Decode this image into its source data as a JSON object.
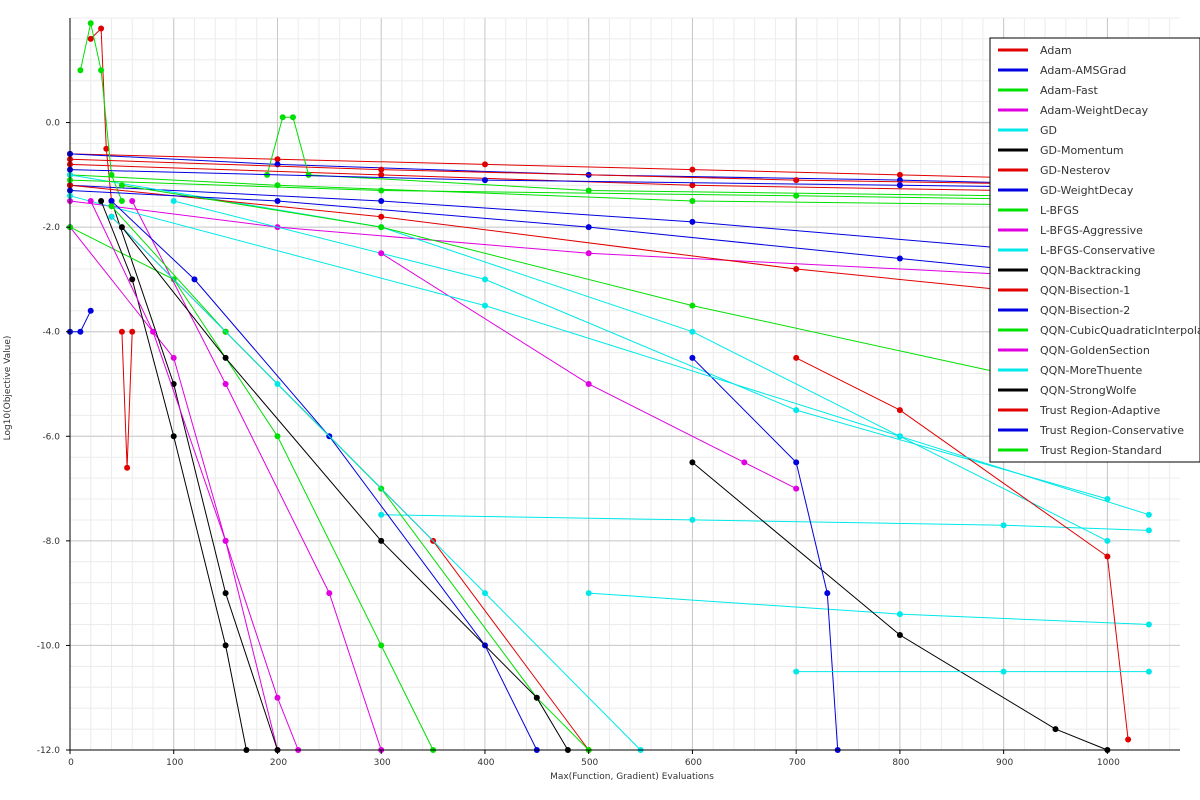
{
  "chart_data": {
    "type": "line",
    "title": "",
    "xlabel": "Max(Function, Gradient) Evaluations",
    "ylabel": "Log10(Objective Value)",
    "xlim": [
      0,
      1070
    ],
    "ylim": [
      -12.0,
      2.0
    ],
    "x_ticks": [
      0,
      100,
      200,
      300,
      400,
      500,
      600,
      700,
      800,
      900,
      1000
    ],
    "y_ticks": [
      0.0,
      -2.0,
      -4.0,
      -6.0,
      -8.0,
      -10.0,
      -12.0
    ],
    "y_tick_labels": [
      "0.0",
      "-2.0",
      "-4.0",
      "-6.0",
      "-8.0",
      "-10.0",
      "-12.0"
    ],
    "grid": true,
    "legend_position": "top-right",
    "series": [
      {
        "name": "Adam",
        "color": "#e00000",
        "lines": [
          [
            [
              0,
              -0.6
            ],
            [
              200,
              -0.7
            ],
            [
              400,
              -0.8
            ],
            [
              600,
              -0.9
            ],
            [
              800,
              -1.0
            ],
            [
              1000,
              -1.1
            ]
          ],
          [
            [
              0,
              -0.8
            ],
            [
              300,
              -1.0
            ],
            [
              600,
              -1.2
            ],
            [
              900,
              -1.3
            ],
            [
              1070,
              -1.3
            ]
          ],
          [
            [
              20,
              1.6
            ],
            [
              30,
              1.8
            ],
            [
              35,
              -0.5
            ],
            [
              40,
              -1.5
            ]
          ]
        ]
      },
      {
        "name": "Adam-AMSGrad",
        "color": "#0000e0",
        "lines": [
          [
            [
              0,
              -0.6
            ],
            [
              200,
              -0.8
            ],
            [
              500,
              -1.0
            ],
            [
              800,
              -1.1
            ],
            [
              1000,
              -1.2
            ]
          ],
          [
            [
              0,
              -1.2
            ],
            [
              300,
              -1.5
            ],
            [
              600,
              -1.9
            ],
            [
              900,
              -2.4
            ],
            [
              1000,
              -2.5
            ]
          ],
          [
            [
              0,
              -4.0
            ],
            [
              10,
              -4.0
            ],
            [
              20,
              -3.6
            ]
          ]
        ]
      },
      {
        "name": "Adam-Fast",
        "color": "#00e000",
        "lines": [
          [
            [
              10,
              1.0
            ],
            [
              20,
              1.9
            ],
            [
              30,
              1.0
            ],
            [
              40,
              -1.0
            ],
            [
              50,
              -1.5
            ]
          ],
          [
            [
              190,
              -1.0
            ],
            [
              205,
              0.1
            ],
            [
              215,
              0.1
            ],
            [
              230,
              -1.0
            ],
            [
              500,
              -1.3
            ],
            [
              900,
              -1.4
            ]
          ],
          [
            [
              0,
              -1.0
            ],
            [
              200,
              -1.2
            ],
            [
              600,
              -1.5
            ],
            [
              1050,
              -1.6
            ]
          ]
        ]
      },
      {
        "name": "Adam-WeightDecay",
        "color": "#e000e0",
        "lines": [
          [
            [
              0,
              -1.5
            ],
            [
              200,
              -2.0
            ],
            [
              500,
              -2.5
            ],
            [
              900,
              -2.9
            ]
          ],
          [
            [
              0,
              -2.0
            ],
            [
              100,
              -4.5
            ],
            [
              150,
              -8.0
            ],
            [
              200,
              -12.0
            ]
          ]
        ]
      },
      {
        "name": "GD",
        "color": "#00e8e8",
        "lines": [
          [
            [
              0,
              -1.0
            ],
            [
              300,
              -2.0
            ],
            [
              600,
              -4.0
            ],
            [
              800,
              -6.0
            ],
            [
              1000,
              -8.0
            ]
          ],
          [
            [
              100,
              -1.5
            ],
            [
              400,
              -3.0
            ],
            [
              700,
              -5.5
            ],
            [
              1000,
              -7.2
            ]
          ],
          [
            [
              300,
              -7.5
            ],
            [
              600,
              -7.6
            ],
            [
              900,
              -7.7
            ],
            [
              1040,
              -7.8
            ]
          ],
          [
            [
              500,
              -9.0
            ],
            [
              800,
              -9.4
            ],
            [
              1040,
              -9.6
            ]
          ]
        ]
      },
      {
        "name": "GD-Momentum",
        "color": "#000000",
        "lines": [
          [
            [
              40,
              -1.5
            ],
            [
              100,
              -5.0
            ],
            [
              150,
              -9.0
            ],
            [
              200,
              -12.0
            ]
          ],
          [
            [
              600,
              -6.5
            ],
            [
              800,
              -9.8
            ],
            [
              950,
              -11.6
            ],
            [
              1000,
              -12.0
            ]
          ]
        ]
      },
      {
        "name": "GD-Nesterov",
        "color": "#e00000",
        "lines": [
          [
            [
              0,
              -1.2
            ],
            [
              300,
              -1.8
            ],
            [
              700,
              -2.8
            ],
            [
              1000,
              -3.4
            ]
          ],
          [
            [
              700,
              -4.5
            ],
            [
              800,
              -5.5
            ],
            [
              1000,
              -8.3
            ],
            [
              1020,
              -11.8
            ]
          ],
          [
            [
              50,
              -4.0
            ],
            [
              55,
              -6.6
            ],
            [
              60,
              -4.0
            ]
          ]
        ]
      },
      {
        "name": "GD-WeightDecay",
        "color": "#0000e0",
        "lines": [
          [
            [
              0,
              -1.3
            ],
            [
              200,
              -1.5
            ],
            [
              500,
              -2.0
            ],
            [
              800,
              -2.6
            ],
            [
              1000,
              -3.0
            ]
          ],
          [
            [
              600,
              -4.5
            ],
            [
              700,
              -6.5
            ],
            [
              730,
              -9.0
            ],
            [
              740,
              -12.0
            ]
          ]
        ]
      },
      {
        "name": "L-BFGS",
        "color": "#00e000",
        "lines": [
          [
            [
              0,
              -2.0
            ],
            [
              100,
              -3.0
            ],
            [
              200,
              -6.0
            ],
            [
              300,
              -10.0
            ],
            [
              350,
              -12.0
            ]
          ],
          [
            [
              50,
              -1.2
            ],
            [
              300,
              -2.0
            ],
            [
              600,
              -3.5
            ],
            [
              900,
              -4.8
            ]
          ]
        ]
      },
      {
        "name": "L-BFGS-Aggressive",
        "color": "#e000e0",
        "lines": [
          [
            [
              60,
              -1.5
            ],
            [
              150,
              -5.0
            ],
            [
              250,
              -9.0
            ],
            [
              300,
              -12.0
            ]
          ],
          [
            [
              300,
              -2.5
            ],
            [
              500,
              -5.0
            ],
            [
              650,
              -6.5
            ],
            [
              700,
              -7.0
            ]
          ]
        ]
      },
      {
        "name": "L-BFGS-Conservative",
        "color": "#00e8e8",
        "lines": [
          [
            [
              0,
              -1.4
            ],
            [
              400,
              -3.5
            ],
            [
              800,
              -6.0
            ],
            [
              1040,
              -7.5
            ]
          ],
          [
            [
              700,
              -10.5
            ],
            [
              900,
              -10.5
            ],
            [
              1040,
              -10.5
            ]
          ]
        ]
      },
      {
        "name": "QQN-Backtracking",
        "color": "#000000",
        "lines": [
          [
            [
              30,
              -1.5
            ],
            [
              60,
              -3.0
            ],
            [
              100,
              -6.0
            ],
            [
              150,
              -10.0
            ],
            [
              170,
              -12.0
            ]
          ]
        ]
      },
      {
        "name": "QQN-Bisection-1",
        "color": "#e00000",
        "lines": [
          [
            [
              40,
              -1.8
            ],
            [
              150,
              -4.0
            ],
            [
              350,
              -8.0
            ],
            [
              500,
              -12.0
            ]
          ]
        ]
      },
      {
        "name": "QQN-Bisection-2",
        "color": "#0000e0",
        "lines": [
          [
            [
              40,
              -1.5
            ],
            [
              120,
              -3.0
            ],
            [
              250,
              -6.0
            ],
            [
              400,
              -10.0
            ],
            [
              450,
              -12.0
            ]
          ]
        ]
      },
      {
        "name": "QQN-CubicQuadraticInterpolation",
        "color": "#00e000",
        "lines": [
          [
            [
              40,
              -1.6
            ],
            [
              150,
              -4.0
            ],
            [
              300,
              -7.0
            ],
            [
              450,
              -11.0
            ],
            [
              500,
              -12.0
            ]
          ]
        ]
      },
      {
        "name": "QQN-GoldenSection",
        "color": "#e000e0",
        "lines": [
          [
            [
              20,
              -1.5
            ],
            [
              80,
              -4.0
            ],
            [
              150,
              -8.0
            ],
            [
              200,
              -11.0
            ],
            [
              220,
              -12.0
            ]
          ]
        ]
      },
      {
        "name": "QQN-MoreThuente",
        "color": "#00e8e8",
        "lines": [
          [
            [
              40,
              -1.8
            ],
            [
              200,
              -5.0
            ],
            [
              400,
              -9.0
            ],
            [
              550,
              -12.0
            ]
          ]
        ]
      },
      {
        "name": "QQN-StrongWolfe",
        "color": "#000000",
        "lines": [
          [
            [
              50,
              -2.0
            ],
            [
              150,
              -4.5
            ],
            [
              300,
              -8.0
            ],
            [
              450,
              -11.0
            ],
            [
              480,
              -12.0
            ]
          ]
        ]
      },
      {
        "name": "Trust Region-Adaptive",
        "color": "#e00000",
        "lines": [
          [
            [
              0,
              -0.7
            ],
            [
              300,
              -0.9
            ],
            [
              700,
              -1.1
            ],
            [
              1000,
              -1.2
            ],
            [
              1070,
              -1.3
            ]
          ]
        ]
      },
      {
        "name": "Trust Region-Conservative",
        "color": "#0000e0",
        "lines": [
          [
            [
              0,
              -0.9
            ],
            [
              400,
              -1.1
            ],
            [
              800,
              -1.2
            ],
            [
              1000,
              -1.25
            ]
          ]
        ]
      },
      {
        "name": "Trust Region-Standard",
        "color": "#00e000",
        "lines": [
          [
            [
              0,
              -1.1
            ],
            [
              300,
              -1.3
            ],
            [
              700,
              -1.4
            ],
            [
              1050,
              -1.5
            ]
          ]
        ]
      }
    ]
  }
}
